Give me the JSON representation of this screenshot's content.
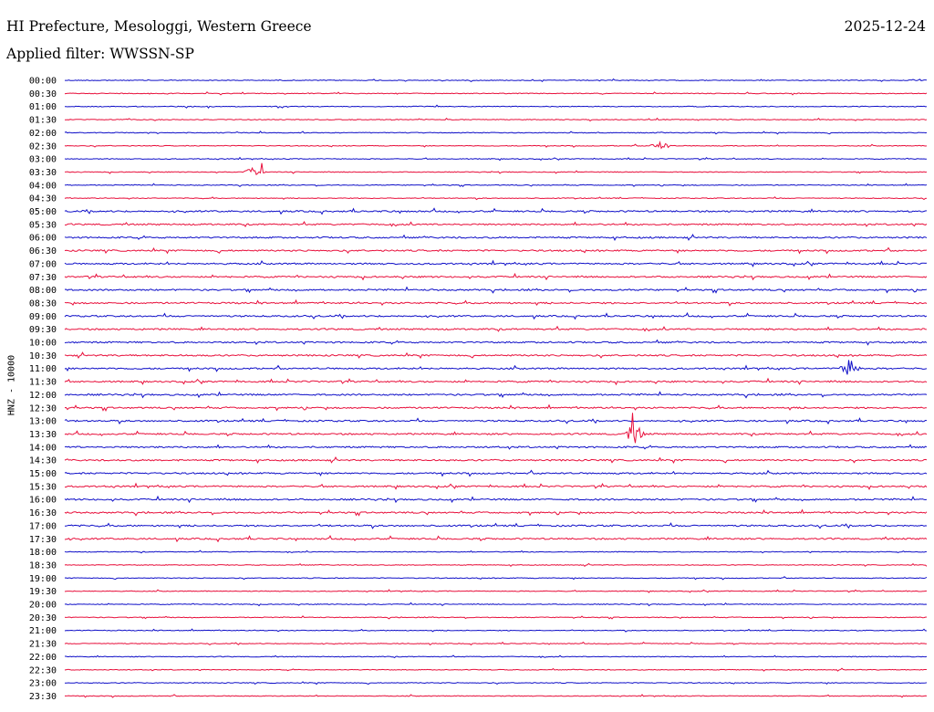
{
  "header": {
    "station": "HI Prefecture, Mesologgi, Western Greece",
    "date": "2025-12-24",
    "filter": "Applied filter: WWSSN-SP"
  },
  "chart_data": {
    "type": "line",
    "title": "HI Prefecture, Mesologgi, Western Greece",
    "ylabel": "HNZ - 10000",
    "xlabel": "",
    "colors": [
      "#1010c8",
      "#e8103c"
    ],
    "ticks": [
      "00:00",
      "00:30",
      "01:00",
      "01:30",
      "02:00",
      "02:30",
      "03:00",
      "03:30",
      "04:00",
      "04:30",
      "05:00",
      "05:30",
      "06:00",
      "06:30",
      "07:00",
      "07:30",
      "08:00",
      "08:30",
      "09:00",
      "09:30",
      "10:00",
      "10:30",
      "11:00",
      "11:30",
      "12:00",
      "12:30",
      "13:00",
      "13:30",
      "14:00",
      "14:30",
      "15:00",
      "15:30",
      "16:00",
      "16:30",
      "17:00",
      "17:30",
      "18:00",
      "18:30",
      "19:00",
      "19:30",
      "20:00",
      "20:30",
      "21:00",
      "21:30",
      "22:00",
      "22:30",
      "23:00",
      "23:30"
    ],
    "series_color_pattern": "alternating blue/red per 30-minute trace",
    "notable_events": [
      {
        "trace": "03:30",
        "position": 0.22
      },
      {
        "trace": "13:30",
        "position": 0.66
      },
      {
        "trace": "11:00",
        "position": 0.91
      },
      {
        "trace": "02:30",
        "position": 0.69
      }
    ]
  }
}
